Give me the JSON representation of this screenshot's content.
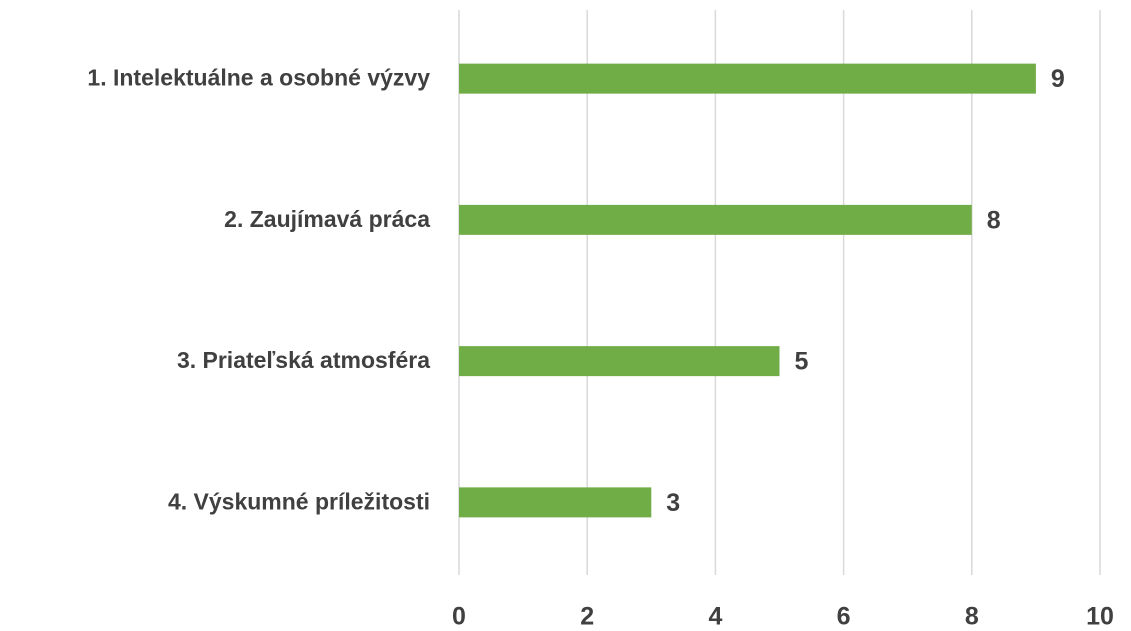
{
  "chart_data": {
    "type": "bar",
    "orientation": "horizontal",
    "categories": [
      "1. Intelektuálne a osobné výzvy",
      "2. Zaujímavá práca",
      "3. Priateľská atmosféra",
      "4. Výskumné príležitosti"
    ],
    "values": [
      9,
      8,
      5,
      3
    ],
    "color": "#70ad47",
    "xlim": [
      0,
      10
    ],
    "xticks": [
      0,
      2,
      4,
      6,
      8,
      10
    ],
    "grid": true
  }
}
